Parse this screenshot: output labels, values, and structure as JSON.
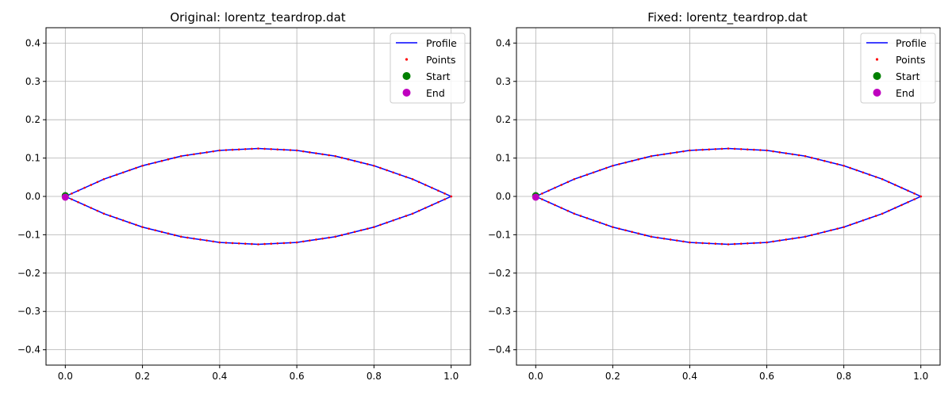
{
  "figure": {
    "background": "#ffffff"
  },
  "chart_data": [
    {
      "type": "line",
      "title": "Original: lorentz_teardrop.dat",
      "xlim": [
        -0.05,
        1.05
      ],
      "ylim": [
        -0.44,
        0.44
      ],
      "xticks": [
        "0.0",
        "0.2",
        "0.4",
        "0.6",
        "0.8",
        "1.0"
      ],
      "yticks": [
        "-0.4",
        "-0.3",
        "-0.2",
        "-0.1",
        "0.0",
        "0.1",
        "0.2",
        "0.3",
        "0.4"
      ],
      "grid": true,
      "legend": {
        "placement": "top-right",
        "entries": [
          "Profile",
          "Points",
          "Start",
          "End"
        ]
      },
      "colors": {
        "profile": "#0000ff",
        "points": "#ff0000",
        "start": "#008000",
        "end": "#bf00bf"
      },
      "series": [
        {
          "name": "Profile",
          "x": [
            0.0,
            0.1,
            0.2,
            0.3,
            0.4,
            0.5,
            0.6,
            0.7,
            0.8,
            0.9,
            1.0
          ],
          "y_upper": [
            0.0,
            0.045,
            0.08,
            0.105,
            0.12,
            0.125,
            0.12,
            0.105,
            0.08,
            0.045,
            0.0
          ],
          "y_lower": [
            0.0,
            -0.045,
            -0.08,
            -0.105,
            -0.12,
            -0.125,
            -0.12,
            -0.105,
            -0.08,
            -0.045,
            0.0
          ]
        },
        {
          "name": "Start",
          "x": [
            0.0
          ],
          "y": [
            0.002
          ]
        },
        {
          "name": "End",
          "x": [
            0.0
          ],
          "y": [
            -0.002
          ]
        }
      ]
    },
    {
      "type": "line",
      "title": "Fixed: lorentz_teardrop.dat",
      "xlim": [
        -0.05,
        1.05
      ],
      "ylim": [
        -0.44,
        0.44
      ],
      "xticks": [
        "0.0",
        "0.2",
        "0.4",
        "0.6",
        "0.8",
        "1.0"
      ],
      "yticks": [
        "-0.4",
        "-0.3",
        "-0.2",
        "-0.1",
        "0.0",
        "0.1",
        "0.2",
        "0.3",
        "0.4"
      ],
      "grid": true,
      "legend": {
        "placement": "top-right",
        "entries": [
          "Profile",
          "Points",
          "Start",
          "End"
        ]
      },
      "colors": {
        "profile": "#0000ff",
        "points": "#ff0000",
        "start": "#008000",
        "end": "#bf00bf"
      },
      "series": [
        {
          "name": "Profile",
          "x": [
            0.0,
            0.1,
            0.2,
            0.3,
            0.4,
            0.5,
            0.6,
            0.7,
            0.8,
            0.9,
            1.0
          ],
          "y_upper": [
            0.0,
            0.045,
            0.08,
            0.105,
            0.12,
            0.125,
            0.12,
            0.105,
            0.08,
            0.045,
            0.0
          ],
          "y_lower": [
            0.0,
            -0.045,
            -0.08,
            -0.105,
            -0.12,
            -0.125,
            -0.12,
            -0.105,
            -0.08,
            -0.045,
            0.0
          ]
        },
        {
          "name": "Start",
          "x": [
            0.0
          ],
          "y": [
            0.002
          ]
        },
        {
          "name": "End",
          "x": [
            0.0
          ],
          "y": [
            -0.002
          ]
        }
      ]
    }
  ]
}
